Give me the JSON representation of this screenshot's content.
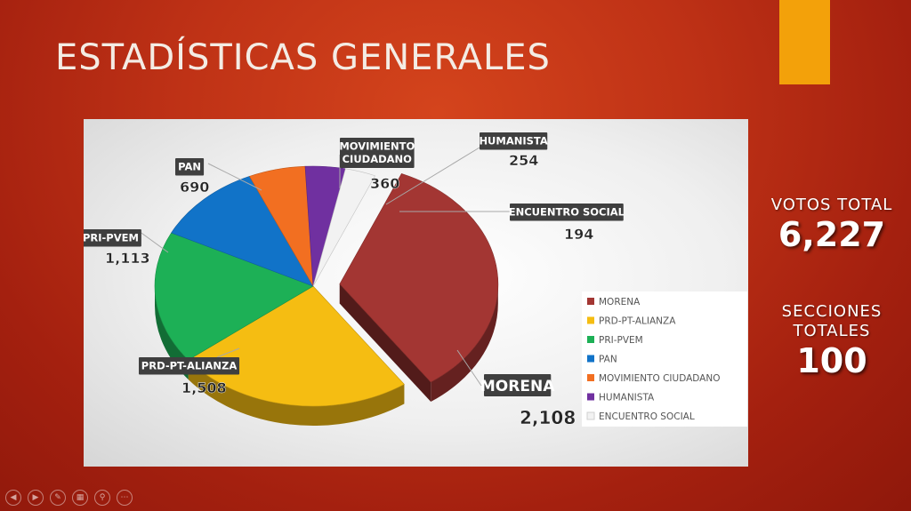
{
  "slide": {
    "title": "ESTADÍSTICAS GENERALES"
  },
  "stats": {
    "votes_label": "VOTOS TOTAL",
    "votes_value": "6,227",
    "sections_label_1": "SECCIONES",
    "sections_label_2": "TOTALES",
    "sections_value": "100"
  },
  "colors": {
    "accent": "#f3a10a",
    "background": "#b92d14"
  },
  "controls": [
    {
      "name": "previous-slide-icon",
      "glyph": "◀"
    },
    {
      "name": "next-slide-icon",
      "glyph": "▶"
    },
    {
      "name": "pen-icon",
      "glyph": "✎"
    },
    {
      "name": "slides-grid-icon",
      "glyph": "▦"
    },
    {
      "name": "zoom-icon",
      "glyph": "⚲"
    },
    {
      "name": "more-options-icon",
      "glyph": "⋯"
    }
  ],
  "chart_data": {
    "type": "pie",
    "exploded": "MORENA",
    "legend_position": "right",
    "slices": [
      {
        "label": "MORENA",
        "value": 2108,
        "value_label": "2,108",
        "color": "#a33633"
      },
      {
        "label": "PRD-PT-ALIANZA",
        "value": 1508,
        "value_label": "1,508",
        "color": "#f5bd12"
      },
      {
        "label": "PRI-PVEM",
        "value": 1113,
        "value_label": "1,113",
        "color": "#1db056"
      },
      {
        "label": "PAN",
        "value": 690,
        "value_label": "690",
        "color": "#1173c8"
      },
      {
        "label": "MOVIMIENTO CIUDADANO",
        "value": 360,
        "value_label": "360",
        "color": "#f26f21"
      },
      {
        "label": "HUMANISTA",
        "value": 254,
        "value_label": "254",
        "color": "#7030a0"
      },
      {
        "label": "ENCUENTRO SOCIAL",
        "value": 194,
        "value_label": "194",
        "color": "#f2f2f2"
      }
    ]
  }
}
